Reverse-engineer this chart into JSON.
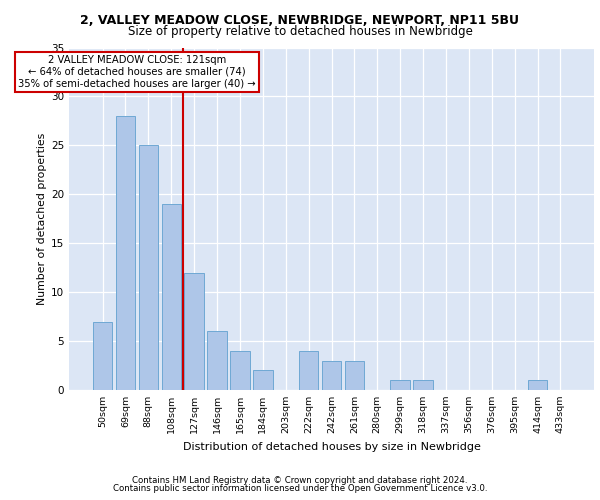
{
  "title": "2, VALLEY MEADOW CLOSE, NEWBRIDGE, NEWPORT, NP11 5BU",
  "subtitle": "Size of property relative to detached houses in Newbridge",
  "xlabel": "Distribution of detached houses by size in Newbridge",
  "ylabel": "Number of detached properties",
  "categories": [
    "50sqm",
    "69sqm",
    "88sqm",
    "108sqm",
    "127sqm",
    "146sqm",
    "165sqm",
    "184sqm",
    "203sqm",
    "222sqm",
    "242sqm",
    "261sqm",
    "280sqm",
    "299sqm",
    "318sqm",
    "337sqm",
    "356sqm",
    "376sqm",
    "395sqm",
    "414sqm",
    "433sqm"
  ],
  "values": [
    7,
    28,
    25,
    19,
    12,
    6,
    4,
    2,
    0,
    4,
    3,
    3,
    0,
    1,
    1,
    0,
    0,
    0,
    0,
    1,
    0
  ],
  "bar_color": "#aec6e8",
  "bar_edge_color": "#6fa8d4",
  "red_line_x": 3.5,
  "annotation_text": "2 VALLEY MEADOW CLOSE: 121sqm\n← 64% of detached houses are smaller (74)\n35% of semi-detached houses are larger (40) →",
  "annotation_box_color": "#ffffff",
  "annotation_border_color": "#cc0000",
  "red_line_color": "#cc0000",
  "ylim": [
    0,
    35
  ],
  "yticks": [
    0,
    5,
    10,
    15,
    20,
    25,
    30,
    35
  ],
  "background_color": "#dce6f5",
  "footer_line1": "Contains HM Land Registry data © Crown copyright and database right 2024.",
  "footer_line2": "Contains public sector information licensed under the Open Government Licence v3.0."
}
